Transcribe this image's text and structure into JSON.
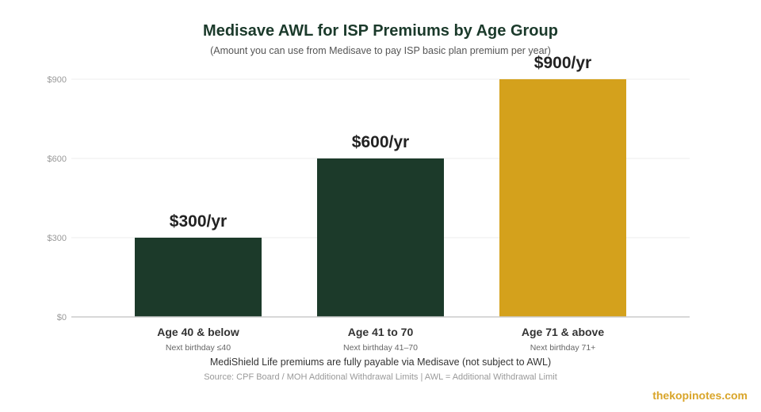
{
  "chart_data": {
    "type": "bar",
    "title": "Medisave AWL for ISP Premiums by Age Group",
    "subtitle": "(Amount you can use from Medisave to pay ISP basic plan premium per year)",
    "categories": [
      "Age 40 & below",
      "Age 41 to 70",
      "Age 71 & above"
    ],
    "category_sublabels": [
      "Next birthday ≤40",
      "Next birthday 41–70",
      "Next birthday 71+"
    ],
    "values": [
      300,
      600,
      900
    ],
    "data_labels": [
      "$300/yr",
      "$600/yr",
      "$900/yr"
    ],
    "colors": [
      "#1c3a2a",
      "#1c3a2a",
      "#d4a11c"
    ],
    "ylim": [
      0,
      900
    ],
    "yticks": [
      0,
      300,
      600,
      900
    ],
    "ytick_labels": [
      "$0",
      "$300",
      "$600",
      "$900"
    ],
    "xlabel": "",
    "ylabel": "",
    "grid": true,
    "legend": "none"
  },
  "footnote": "MediShield Life premiums are fully payable via Medisave (not subject to AWL)",
  "source": "Source: CPF Board / MOH Additional Withdrawal Limits | AWL = Additional Withdrawal Limit",
  "watermark": "thekopinotes.com"
}
